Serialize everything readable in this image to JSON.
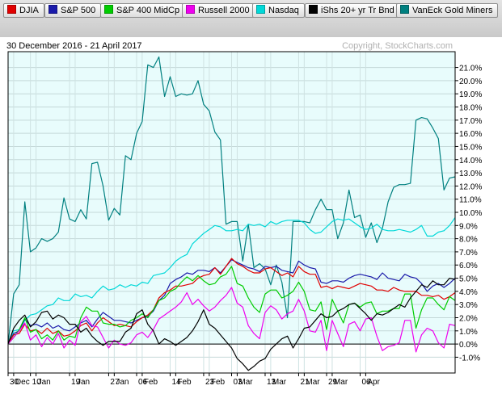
{
  "legend": [
    {
      "label": "DJIA",
      "color": "#e00000"
    },
    {
      "label": "S&P 500",
      "color": "#1a1aaa"
    },
    {
      "label": "S&P 400 MidCp",
      "color": "#00cc00"
    },
    {
      "label": "Russell 2000",
      "color": "#ee00ee"
    },
    {
      "label": "Nasdaq",
      "color": "#00d8d8"
    },
    {
      "label": "iShs 20+ yr Tr Bnd",
      "color": "#000000"
    },
    {
      "label": "VanEck Gold Miners",
      "color": "#008080"
    }
  ],
  "header": {
    "date_range": "30 December 2016 - 21 April 2017",
    "copyright": "Copyright, StockCharts.com"
  },
  "chart_data": {
    "type": "line",
    "title": "30 December 2016 - 21 April 2017",
    "ylabel": "",
    "xlabel": "",
    "ylim": [
      -2.2,
      22.2
    ],
    "y_unit": "%",
    "y_ticks": [
      -1,
      0,
      1,
      2,
      3,
      4,
      5,
      6,
      7,
      8,
      9,
      10,
      11,
      12,
      13,
      14,
      15,
      16,
      17,
      18,
      19,
      20,
      21
    ],
    "y_tick_labels": [
      "-1.0%",
      "0.0%",
      "1.0%",
      "2.0%",
      "3.0%",
      "4.0%",
      "5.0%",
      "6.0%",
      "7.0%",
      "8.0%",
      "9.0%",
      "10.0%",
      "11.0%",
      "12.0%",
      "13.0%",
      "14.0%",
      "15.0%",
      "16.0%",
      "17.0%",
      "18.0%",
      "19.0%",
      "20.0%",
      "21.0%"
    ],
    "x_ticks": [
      {
        "i": 0,
        "label": "30"
      },
      {
        "i": 1,
        "label": "Dec"
      },
      {
        "i": 4,
        "label": "10"
      },
      {
        "i": 5,
        "label": "Jan"
      },
      {
        "i": 11,
        "label": "19"
      },
      {
        "i": 12,
        "label": "Jan"
      },
      {
        "i": 18,
        "label": "27"
      },
      {
        "i": 19,
        "label": "Jan"
      },
      {
        "i": 23,
        "label": "06"
      },
      {
        "i": 24,
        "label": "Feb"
      },
      {
        "i": 29,
        "label": "14"
      },
      {
        "i": 30,
        "label": "Feb"
      },
      {
        "i": 35,
        "label": "23"
      },
      {
        "i": 36,
        "label": "Feb"
      },
      {
        "i": 40,
        "label": "03"
      },
      {
        "i": 41,
        "label": "Mar"
      },
      {
        "i": 46,
        "label": "13"
      },
      {
        "i": 47,
        "label": "Mar"
      },
      {
        "i": 52,
        "label": "21"
      },
      {
        "i": 53,
        "label": "Mar"
      },
      {
        "i": 57,
        "label": "29"
      },
      {
        "i": 58,
        "label": "Mar"
      },
      {
        "i": 63,
        "label": "06"
      },
      {
        "i": 64,
        "label": "Apr"
      }
    ],
    "series": [
      {
        "name": "VanEck Gold Miners",
        "color": "#008080",
        "values": [
          0,
          3.8,
          4.5,
          10.8,
          7.0,
          7.3,
          8.0,
          7.8,
          8.0,
          8.5,
          11.1,
          9.5,
          9.3,
          10.2,
          9.5,
          13.7,
          13.8,
          12.0,
          9.4,
          10.3,
          9.8,
          14.3,
          14.0,
          16.0,
          16.9,
          21.2,
          21.0,
          21.8,
          18.8,
          20.3,
          18.8,
          19.0,
          18.9,
          19.0,
          20.0,
          18.2,
          17.7,
          16.1,
          15.5,
          9.1,
          9.3,
          9.3,
          6.3,
          9.1,
          5.8,
          6.1,
          5.7,
          4.5,
          6.0,
          4.7,
          2.0,
          9.3,
          9.3,
          9.3,
          9.2,
          10.2,
          11.0,
          10.2,
          10.2,
          8.0,
          9.2,
          11.7,
          9.6,
          9.8,
          8.1,
          9.2,
          7.7,
          8.8,
          10.8,
          11.9,
          12.1,
          12.1,
          12.2,
          17.0,
          17.2,
          17.1,
          16.4,
          15.6,
          11.7,
          12.6,
          12.7
        ]
      },
      {
        "name": "Nasdaq",
        "color": "#00d8d8",
        "values": [
          0,
          1.0,
          1.1,
          1.8,
          2.2,
          2.3,
          2.6,
          2.9,
          3.0,
          3.5,
          3.3,
          3.3,
          3.8,
          3.6,
          3.7,
          3.5,
          4.0,
          4.4,
          4.1,
          4.2,
          4.5,
          4.3,
          4.5,
          4.4,
          4.7,
          4.6,
          5.2,
          5.3,
          5.4,
          5.8,
          6.3,
          6.6,
          6.8,
          7.6,
          8.0,
          8.4,
          8.7,
          9.0,
          8.9,
          8.6,
          8.6,
          8.7,
          8.6,
          9.1,
          9.0,
          9.1,
          8.9,
          9.3,
          9.1,
          9.3,
          9.4,
          9.4,
          9.4,
          9.2,
          8.7,
          8.4,
          8.5,
          8.9,
          9.3,
          9.5,
          9.4,
          9.5,
          9.2,
          8.9,
          8.7,
          8.8,
          9.1,
          8.7,
          8.6,
          8.6,
          8.7,
          8.6,
          8.5,
          8.7,
          9.0,
          8.2,
          8.2,
          8.5,
          8.6,
          9.0,
          9.6
        ]
      },
      {
        "name": "S&P 500",
        "color": "#1a1aaa",
        "values": [
          0,
          0.8,
          1.0,
          1.9,
          1.4,
          1.5,
          1.3,
          1.6,
          1.2,
          1.4,
          1.1,
          1.0,
          1.3,
          1.6,
          1.8,
          1.3,
          1.9,
          2.4,
          2.1,
          1.8,
          1.8,
          1.7,
          1.6,
          1.8,
          2.0,
          2.1,
          2.5,
          3.3,
          3.7,
          4.6,
          4.9,
          5.1,
          5.4,
          5.3,
          5.6,
          5.6,
          5.5,
          5.8,
          5.4,
          5.9,
          6.4,
          6.2,
          6.0,
          5.8,
          5.7,
          5.5,
          5.9,
          5.8,
          5.9,
          5.6,
          5.5,
          5.4,
          6.3,
          6.0,
          5.8,
          5.7,
          4.7,
          4.6,
          4.8,
          4.8,
          4.7,
          5.0,
          5.2,
          5.3,
          5.2,
          5.1,
          4.9,
          5.4,
          5.0,
          4.9,
          4.8,
          5.3,
          5.1,
          5.0,
          4.6,
          4.0,
          4.4,
          4.6,
          4.3,
          4.6,
          5.0
        ]
      },
      {
        "name": "DJIA",
        "color": "#e00000",
        "values": [
          0,
          0.7,
          0.8,
          1.5,
          1.0,
          1.1,
          0.8,
          1.2,
          0.8,
          1.0,
          0.6,
          0.7,
          1.0,
          1.4,
          1.6,
          1.0,
          1.6,
          2.0,
          1.7,
          1.4,
          1.5,
          1.4,
          1.3,
          1.7,
          2.0,
          2.2,
          2.6,
          3.5,
          3.9,
          4.1,
          4.4,
          4.4,
          4.5,
          4.6,
          5.0,
          5.2,
          5.3,
          5.8,
          5.3,
          5.9,
          6.5,
          6.1,
          5.9,
          5.6,
          5.4,
          5.4,
          5.7,
          5.8,
          5.5,
          5.2,
          5.4,
          5.1,
          5.9,
          5.5,
          5.3,
          5.3,
          4.3,
          4.4,
          4.2,
          4.4,
          4.3,
          4.2,
          4.4,
          4.6,
          4.5,
          4.4,
          4.1,
          4.1,
          4.0,
          4.3,
          4.1,
          4.0,
          4.0,
          4.0,
          3.7,
          3.7,
          3.6,
          3.7,
          3.4,
          3.6,
          3.9
        ]
      },
      {
        "name": "S&P 400 MidCp",
        "color": "#00cc00",
        "values": [
          0,
          0.5,
          1.1,
          2.0,
          0.9,
          1.1,
          0.4,
          0.7,
          0.3,
          1.0,
          0.3,
          0.6,
          0.5,
          2.0,
          2.8,
          2.5,
          2.5,
          1.6,
          1.5,
          1.5,
          1.3,
          1.4,
          1.8,
          2.0,
          2.3,
          2.0,
          2.6,
          3.3,
          3.5,
          4.0,
          4.2,
          4.7,
          5.1,
          4.8,
          5.2,
          4.8,
          4.5,
          4.6,
          5.1,
          5.3,
          5.9,
          4.6,
          4.4,
          3.5,
          2.8,
          2.4,
          3.8,
          4.1,
          4.1,
          3.5,
          3.7,
          4.0,
          4.7,
          4.0,
          2.6,
          2.5,
          3.2,
          1.1,
          3.4,
          2.5,
          1.6,
          3.0,
          3.1,
          2.8,
          3.1,
          3.2,
          2.3,
          2.5,
          2.5,
          2.7,
          2.7,
          3.8,
          3.8,
          1.2,
          2.6,
          3.5,
          3.5,
          3.0,
          2.6,
          3.6,
          3.3
        ]
      },
      {
        "name": "Russell 2000",
        "color": "#ee00ee",
        "values": [
          0,
          0.5,
          1.0,
          1.6,
          0.3,
          0.7,
          -0.2,
          0.5,
          0.0,
          0.8,
          -0.3,
          0.3,
          -0.1,
          1.7,
          2.1,
          1.4,
          1.3,
          0.5,
          -0.3,
          0.3,
          0.0,
          -0.1,
          0.1,
          0.7,
          0.9,
          0.5,
          1.1,
          1.9,
          2.2,
          2.5,
          2.8,
          3.2,
          3.9,
          3.0,
          3.4,
          2.9,
          2.5,
          2.8,
          3.3,
          3.7,
          4.3,
          3.1,
          2.8,
          1.4,
          0.8,
          0.4,
          2.4,
          2.9,
          2.6,
          1.9,
          2.3,
          2.5,
          3.4,
          2.5,
          1.0,
          0.9,
          1.8,
          -0.5,
          1.8,
          0.8,
          -0.2,
          1.5,
          1.7,
          1.0,
          1.9,
          2.0,
          0.6,
          -0.5,
          -0.2,
          -0.1,
          0.1,
          1.8,
          1.8,
          -0.6,
          0.7,
          1.2,
          1.0,
          0.1,
          -0.3,
          1.5,
          1.4
        ]
      },
      {
        "name": "iShs 20+ yr Tr Bnd",
        "color": "#000000",
        "values": [
          0,
          1.2,
          1.8,
          2.2,
          1.3,
          1.7,
          2.4,
          2.5,
          1.9,
          2.2,
          2.0,
          1.5,
          1.5,
          0.9,
          1.2,
          0.6,
          0.2,
          -0.1,
          0.2,
          0.2,
          0.2,
          0.9,
          1.2,
          2.3,
          2.6,
          1.5,
          1.0,
          0.0,
          0.4,
          0.2,
          -0.1,
          0.2,
          0.5,
          1.0,
          1.7,
          2.6,
          1.5,
          1.2,
          0.7,
          0.2,
          -0.3,
          -1.1,
          -1.5,
          -2.0,
          -1.7,
          -1.3,
          -1.1,
          -0.4,
          0.0,
          0.4,
          0.6,
          -0.3,
          0.4,
          1.2,
          1.3,
          1.8,
          2.3,
          2.0,
          2.1,
          2.5,
          2.7,
          3.0,
          3.1,
          2.7,
          2.3,
          1.8,
          2.3,
          2.2,
          2.4,
          2.7,
          3.0,
          2.8,
          3.5,
          4.0,
          4.5,
          4.3,
          4.8,
          4.5,
          4.5,
          5.0,
          4.9
        ]
      }
    ]
  }
}
